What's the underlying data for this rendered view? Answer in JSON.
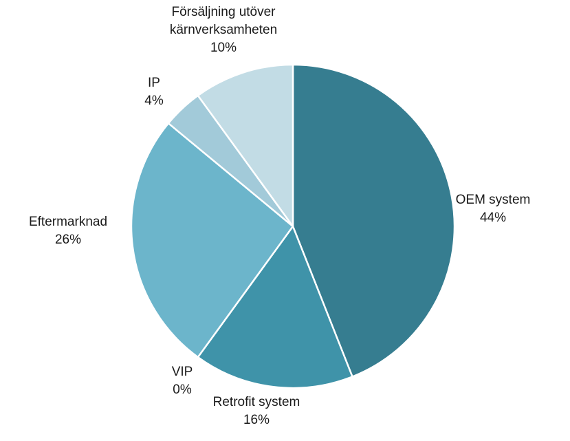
{
  "chart_data": {
    "type": "pie",
    "title": "",
    "slices": [
      {
        "label": "OEM system",
        "value": 44,
        "value_label": "44%",
        "color": "#367d90"
      },
      {
        "label": "Retrofit system",
        "value": 16,
        "value_label": "16%",
        "color": "#3f93a9"
      },
      {
        "label": "VIP",
        "value": 0,
        "value_label": "0%",
        "color": "#56a6bc"
      },
      {
        "label": "Eftermarknad",
        "value": 26,
        "value_label": "26%",
        "color": "#6cb5cb"
      },
      {
        "label": "IP",
        "value": 4,
        "value_label": "4%",
        "color": "#a2cad9"
      },
      {
        "label": "Försäljning utöver kärnverksamheten",
        "label_lines": [
          "Försäljning utöver",
          "kärnverksamheten"
        ],
        "value": 10,
        "value_label": "10%",
        "color": "#c2dce5"
      }
    ]
  }
}
